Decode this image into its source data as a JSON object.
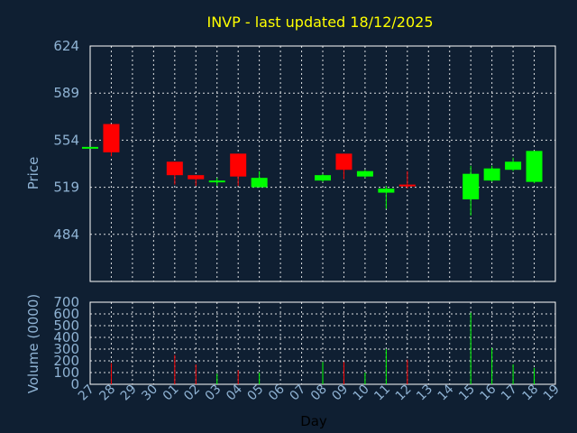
{
  "title": "INVP - last updated 18/12/2025",
  "colors": {
    "background": "#0f1f32",
    "up": "#00ff00",
    "down": "#ff0000",
    "title": "#ffff00",
    "tick": "#8fb3d4",
    "grid": "#ffffff"
  },
  "chart_data": [
    {
      "type": "candlestick",
      "ylabel": "Price",
      "ylim": [
        449,
        624
      ],
      "yticks": [
        484,
        519,
        554,
        589,
        624
      ],
      "grid": true,
      "candles": [
        {
          "x": "27",
          "open": 549,
          "high": 549,
          "low": 549,
          "close": 549
        },
        {
          "x": "28",
          "open": 566,
          "high": 566,
          "low": 542,
          "close": 545
        },
        {
          "x": "01",
          "open": 538,
          "high": 538,
          "low": 521,
          "close": 528
        },
        {
          "x": "02",
          "open": 528,
          "high": 528,
          "low": 520,
          "close": 525
        },
        {
          "x": "03",
          "open": 523,
          "high": 526,
          "low": 520,
          "close": 524
        },
        {
          "x": "04",
          "open": 544,
          "high": 544,
          "low": 520,
          "close": 527
        },
        {
          "x": "05",
          "open": 519,
          "high": 531,
          "low": 519,
          "close": 526
        },
        {
          "x": "08",
          "open": 524,
          "high": 529,
          "low": 523,
          "close": 528
        },
        {
          "x": "09",
          "open": 544,
          "high": 544,
          "low": 525,
          "close": 532
        },
        {
          "x": "10",
          "open": 527,
          "high": 532,
          "low": 526,
          "close": 531
        },
        {
          "x": "11",
          "open": 515,
          "high": 520,
          "low": 503,
          "close": 518
        },
        {
          "x": "12",
          "open": 521,
          "high": 531,
          "low": 518,
          "close": 520
        },
        {
          "x": "15",
          "open": 510,
          "high": 535,
          "low": 498,
          "close": 529
        },
        {
          "x": "16",
          "open": 524,
          "high": 535,
          "low": 523,
          "close": 533
        },
        {
          "x": "17",
          "open": 532,
          "high": 541,
          "low": 531,
          "close": 538
        },
        {
          "x": "18",
          "open": 523,
          "high": 546,
          "low": 522,
          "close": 546
        }
      ],
      "xticks": [
        "27",
        "28",
        "29",
        "30",
        "01",
        "02",
        "03",
        "04",
        "05",
        "06",
        "07",
        "08",
        "09",
        "10",
        "11",
        "12",
        "13",
        "14",
        "15",
        "16",
        "17",
        "18",
        "19"
      ]
    },
    {
      "type": "bar",
      "ylabel": "Volume (0000)",
      "xlabel": "Day",
      "ylim": [
        0,
        700
      ],
      "yticks": [
        0,
        100,
        200,
        300,
        400,
        500,
        600,
        700
      ],
      "grid": true,
      "bars": [
        {
          "x": "27",
          "value": 0,
          "dir": "up"
        },
        {
          "x": "28",
          "value": 180,
          "dir": "down"
        },
        {
          "x": "01",
          "value": 250,
          "dir": "down"
        },
        {
          "x": "02",
          "value": 170,
          "dir": "down"
        },
        {
          "x": "03",
          "value": 90,
          "dir": "up"
        },
        {
          "x": "04",
          "value": 120,
          "dir": "down"
        },
        {
          "x": "05",
          "value": 100,
          "dir": "up"
        },
        {
          "x": "08",
          "value": 190,
          "dir": "up"
        },
        {
          "x": "09",
          "value": 190,
          "dir": "down"
        },
        {
          "x": "10",
          "value": 100,
          "dir": "up"
        },
        {
          "x": "11",
          "value": 300,
          "dir": "up"
        },
        {
          "x": "12",
          "value": 210,
          "dir": "down"
        },
        {
          "x": "15",
          "value": 610,
          "dir": "up"
        },
        {
          "x": "16",
          "value": 310,
          "dir": "up"
        },
        {
          "x": "17",
          "value": 170,
          "dir": "up"
        },
        {
          "x": "18",
          "value": 140,
          "dir": "up"
        }
      ]
    }
  ]
}
